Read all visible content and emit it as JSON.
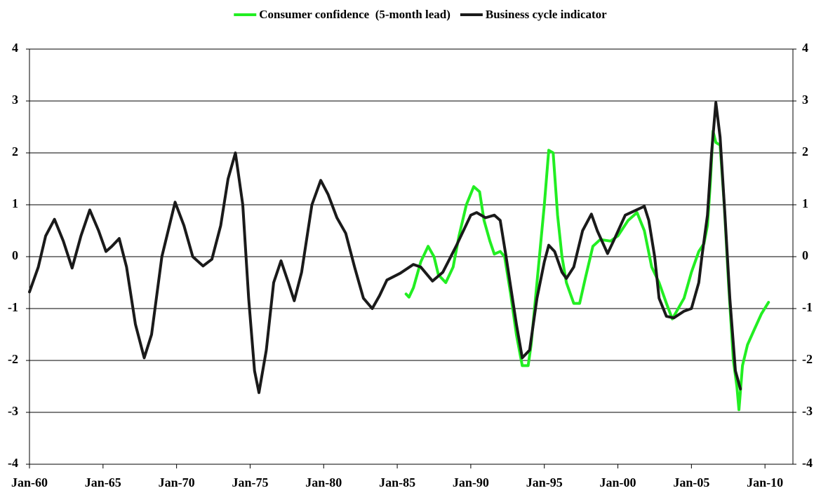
{
  "chart_data": {
    "type": "line",
    "xlim": [
      1960,
      2011.9
    ],
    "xticks": [
      {
        "value": 1960,
        "label": "Jan-60"
      },
      {
        "value": 1965,
        "label": "Jan-65"
      },
      {
        "value": 1970,
        "label": "Jan-70"
      },
      {
        "value": 1975,
        "label": "Jan-75"
      },
      {
        "value": 1980,
        "label": "Jan-80"
      },
      {
        "value": 1985,
        "label": "Jan-85"
      },
      {
        "value": 1990,
        "label": "Jan-90"
      },
      {
        "value": 1995,
        "label": "Jan-95"
      },
      {
        "value": 2000,
        "label": "Jan-00"
      },
      {
        "value": 2005,
        "label": "Jan-05"
      },
      {
        "value": 2010,
        "label": "Jan-10"
      }
    ],
    "ylim": [
      -4,
      4
    ],
    "yticks": [
      -4,
      -3,
      -2,
      -1,
      0,
      1,
      2,
      3,
      4
    ],
    "y2lim": [
      -4,
      4
    ],
    "y2ticks": [
      -4,
      -3,
      -2,
      -1,
      0,
      1,
      2,
      3,
      4
    ],
    "grid": true,
    "legend": "top",
    "series": [
      {
        "name": "Consumer confidence  (5-month lead)",
        "color": "#22ee22",
        "x": [
          1985.6,
          1985.8,
          1986.1,
          1986.6,
          1987.1,
          1987.5,
          1987.8,
          1988.3,
          1988.8,
          1989.2,
          1989.7,
          1990.2,
          1990.6,
          1990.9,
          1991.3,
          1991.6,
          1992.0,
          1992.3,
          1992.7,
          1993.1,
          1993.5,
          1993.9,
          1994.1,
          1994.5,
          1995.0,
          1995.3,
          1995.6,
          1995.9,
          1996.2,
          1996.5,
          1997.0,
          1997.4,
          1997.8,
          1998.3,
          1998.8,
          1999.5,
          2000.0,
          2000.7,
          2001.3,
          2001.8,
          2002.3,
          2002.8,
          2003.3,
          2003.7,
          2004.0,
          2004.5,
          2005.0,
          2005.5,
          2005.85,
          2006.09,
          2006.28,
          2006.47,
          2006.66,
          2006.95,
          2007.23,
          2007.52,
          2007.85,
          2008.09,
          2008.23,
          2008.47,
          2008.81,
          2009.28,
          2009.76,
          2010.24
        ],
        "values": [
          -0.72,
          -0.78,
          -0.6,
          -0.1,
          0.2,
          0.0,
          -0.35,
          -0.5,
          -0.2,
          0.4,
          1.0,
          1.35,
          1.25,
          0.7,
          0.3,
          0.05,
          0.1,
          0.0,
          -0.7,
          -1.5,
          -2.1,
          -2.1,
          -1.7,
          -0.5,
          1.0,
          2.05,
          2.0,
          0.8,
          0.0,
          -0.5,
          -0.9,
          -0.9,
          -0.4,
          0.2,
          0.33,
          0.3,
          0.4,
          0.7,
          0.85,
          0.5,
          -0.2,
          -0.5,
          -0.9,
          -1.2,
          -1.05,
          -0.8,
          -0.3,
          0.1,
          0.25,
          0.6,
          1.4,
          2.42,
          2.2,
          2.15,
          1.0,
          -0.5,
          -2.0,
          -2.5,
          -2.95,
          -2.1,
          -1.7,
          -1.4,
          -1.1,
          -0.88
        ]
      },
      {
        "name": "Business cycle indicator",
        "color": "#1a1a1a",
        "x": [
          1960.0,
          1960.6,
          1961.1,
          1961.7,
          1962.3,
          1962.9,
          1963.5,
          1964.1,
          1964.7,
          1965.2,
          1965.6,
          1966.1,
          1966.6,
          1967.2,
          1967.8,
          1968.3,
          1969.0,
          1969.9,
          1970.5,
          1971.1,
          1971.8,
          1972.4,
          1973.0,
          1973.5,
          1974.0,
          1974.5,
          1974.9,
          1975.3,
          1975.6,
          1976.1,
          1976.6,
          1977.1,
          1977.6,
          1978.0,
          1978.5,
          1979.2,
          1979.8,
          1980.3,
          1980.9,
          1981.5,
          1982.1,
          1982.7,
          1983.3,
          1983.8,
          1984.3,
          1985.2,
          1986.1,
          1986.6,
          1987.4,
          1988.1,
          1989.0,
          1990.0,
          1990.4,
          1991.0,
          1991.6,
          1992.0,
          1992.4,
          1993.1,
          1993.5,
          1994.0,
          1994.5,
          1995.0,
          1995.3,
          1995.7,
          1996.2,
          1996.5,
          1997.0,
          1997.6,
          1998.2,
          1998.6,
          1999.3,
          1999.7,
          2000.5,
          2001.8,
          2002.1,
          2002.5,
          2002.8,
          2003.3,
          2003.8,
          2004.5,
          2005.0,
          2005.5,
          2005.71,
          2006.09,
          2006.37,
          2006.66,
          2006.95,
          2007.28,
          2007.61,
          2007.99,
          2008.33
        ],
        "values": [
          -0.68,
          -0.2,
          0.4,
          0.72,
          0.3,
          -0.22,
          0.4,
          0.9,
          0.5,
          0.1,
          0.2,
          0.35,
          -0.2,
          -1.3,
          -1.95,
          -1.5,
          0.0,
          1.05,
          0.6,
          0.0,
          -0.18,
          -0.05,
          0.6,
          1.5,
          2.0,
          1.0,
          -0.8,
          -2.2,
          -2.62,
          -1.8,
          -0.5,
          -0.08,
          -0.5,
          -0.85,
          -0.3,
          1.0,
          1.47,
          1.2,
          0.75,
          0.45,
          -0.2,
          -0.8,
          -1.0,
          -0.75,
          -0.45,
          -0.32,
          -0.15,
          -0.2,
          -0.47,
          -0.3,
          0.2,
          0.8,
          0.85,
          0.75,
          0.8,
          0.7,
          0.0,
          -1.3,
          -1.95,
          -1.8,
          -0.8,
          -0.1,
          0.22,
          0.1,
          -0.3,
          -0.42,
          -0.2,
          0.5,
          0.82,
          0.5,
          0.06,
          0.3,
          0.8,
          0.97,
          0.7,
          0.0,
          -0.8,
          -1.15,
          -1.18,
          -1.05,
          -1.0,
          -0.5,
          0.0,
          0.8,
          2.0,
          2.97,
          2.3,
          0.8,
          -0.8,
          -2.2,
          -2.55
        ]
      }
    ]
  }
}
